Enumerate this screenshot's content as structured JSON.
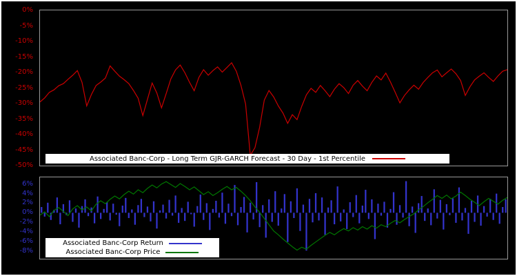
{
  "page": {
    "background": "#000000",
    "frame_border": "#ffffff"
  },
  "chart_data": [
    {
      "type": "line",
      "title": "",
      "xlabel": "",
      "ylabel": "",
      "ylim": [
        -50,
        0
      ],
      "grid": false,
      "legend_position": "bottom-center-inside",
      "axis_label_color": "#cc0000",
      "yticks": [
        "0%",
        "-5%",
        "-10%",
        "-15%",
        "-20%",
        "-25%",
        "-30%",
        "-35%",
        "-40%",
        "-45%",
        "-50%"
      ],
      "ytick_values": [
        0,
        -5,
        -10,
        -15,
        -20,
        -25,
        -30,
        -35,
        -40,
        -45,
        -50
      ],
      "legend": [
        {
          "label": "Associated Banc-Corp - Long Term GJR-GARCH Forecast - 30 Day - 1st Percentile",
          "color": "#cc0000",
          "type": "line"
        }
      ],
      "series": [
        {
          "name": "Associated Banc-Corp - Long Term GJR-GARCH Forecast - 30 Day - 1st Percentile",
          "type": "line",
          "color": "#cc0000",
          "values": [
            -29.5,
            -28.2,
            -26.4,
            -25.6,
            -24.3,
            -23.6,
            -22.2,
            -20.9,
            -19.4,
            -23.2,
            -30.8,
            -27.1,
            -24.2,
            -23.1,
            -21.8,
            -17.9,
            -19.6,
            -21.2,
            -22.3,
            -23.6,
            -25.8,
            -28.3,
            -33.9,
            -28.7,
            -23.4,
            -26.6,
            -31.4,
            -26.8,
            -22.1,
            -19.2,
            -17.6,
            -20.1,
            -23.2,
            -25.9,
            -21.6,
            -19.1,
            -20.9,
            -19.4,
            -18.2,
            -19.9,
            -18.4,
            -16.9,
            -19.6,
            -24.1,
            -30.2,
            -46.7,
            -44.2,
            -37.6,
            -28.9,
            -25.8,
            -27.9,
            -30.8,
            -33.1,
            -36.4,
            -33.6,
            -35.2,
            -30.9,
            -27.2,
            -25.1,
            -26.4,
            -24.2,
            -25.9,
            -27.8,
            -25.4,
            -23.6,
            -24.9,
            -26.8,
            -24.1,
            -22.6,
            -24.4,
            -25.9,
            -23.2,
            -21.1,
            -22.4,
            -20.2,
            -23.1,
            -26.4,
            -29.8,
            -27.4,
            -25.6,
            -24.1,
            -25.4,
            -23.2,
            -21.6,
            -20.1,
            -19.2,
            -21.4,
            -20.1,
            -18.9,
            -20.4,
            -22.6,
            -27.4,
            -24.6,
            -22.4,
            -21.2,
            -20.1,
            -21.6,
            -22.9,
            -21.1,
            -19.6,
            -19.1
          ]
        }
      ]
    },
    {
      "type": "bar",
      "title": "",
      "xlabel": "",
      "ylabel": "",
      "ylim": [
        -9.6,
        7.4
      ],
      "grid": false,
      "legend_position": "bottom-left-inside",
      "axis_label_color": "#3333cc",
      "yticks": [
        "6%",
        "4%",
        "2%",
        "0%",
        "-2%",
        "-4%",
        "-6%",
        "-8%"
      ],
      "ytick_values": [
        6,
        4,
        2,
        0,
        -2,
        -4,
        -6,
        -8
      ],
      "legend": [
        {
          "label": "Associated Banc-Corp Return",
          "color": "#3333cc",
          "type": "bar"
        },
        {
          "label": "Associated Banc-Corp Price",
          "color": "#007700",
          "type": "line"
        }
      ],
      "series": [
        {
          "name": "Associated Banc-Corp Return",
          "type": "bar",
          "color": "#3333cc",
          "values": [
            1.2,
            -0.8,
            2.1,
            -1.5,
            0.6,
            3.2,
            -2.4,
            1.8,
            -0.5,
            2.6,
            -1.9,
            0.9,
            -3.1,
            1.4,
            2.8,
            -0.7,
            1.1,
            -2.2,
            3.4,
            -1.3,
            0.8,
            2.2,
            -1.6,
            1.9,
            -0.4,
            -2.8,
            1.5,
            3.1,
            -1.1,
            0.7,
            -2.5,
            1.6,
            2.9,
            -0.9,
            1.3,
            -1.8,
            2.4,
            -3.3,
            0.5,
            1.7,
            -1.2,
            2.7,
            -0.6,
            3.6,
            -2.1,
            1.0,
            -1.7,
            2.3,
            -0.3,
            -2.9,
            1.4,
            3.8,
            -1.5,
            2.0,
            -3.6,
            0.8,
            2.5,
            -1.0,
            4.2,
            -2.3,
            1.9,
            -0.7,
            5.8,
            -2.6,
            1.2,
            3.3,
            -4.1,
            2.1,
            -1.4,
            6.4,
            -3.0,
            1.6,
            -5.2,
            2.8,
            -1.9,
            4.5,
            -2.7,
            0.9,
            3.9,
            -6.1,
            2.4,
            -1.1,
            5.1,
            -3.8,
            1.7,
            -7.9,
            2.9,
            -2.0,
            4.1,
            -1.6,
            3.2,
            -4.6,
            1.1,
            2.6,
            -2.4,
            5.5,
            -1.8,
            0.7,
            -3.4,
            2.2,
            -0.9,
            3.7,
            -2.2,
            1.5,
            4.8,
            -1.3,
            2.8,
            -5.5,
            1.9,
            -0.6,
            2.3,
            -3.1,
            0.8,
            4.3,
            -2.5,
            1.6,
            -1.0,
            6.6,
            -2.8,
            1.3,
            -4.2,
            2.0,
            3.5,
            -1.7,
            0.9,
            -2.6,
            4.9,
            -1.2,
            2.7,
            -3.5,
            1.8,
            -0.5,
            3.0,
            -2.1,
            5.3,
            -1.6,
            1.0,
            -4.4,
            2.5,
            -1.9,
            3.6,
            -2.7,
            1.4,
            -0.8,
            2.9,
            -1.5,
            4.0,
            -2.3,
            1.2,
            2.8
          ]
        },
        {
          "name": "Associated Banc-Corp Price",
          "type": "line",
          "color": "#007700",
          "values": [
            -0.5,
            0.2,
            -0.8,
            0.5,
            1.1,
            0.3,
            -0.6,
            0.8,
            1.5,
            0.6,
            1.2,
            0.4,
            1.8,
            2.5,
            1.9,
            2.8,
            3.5,
            2.9,
            3.8,
            4.5,
            3.9,
            4.8,
            4.2,
            5.1,
            5.8,
            5.2,
            6.0,
            6.5,
            5.9,
            5.3,
            6.1,
            5.5,
            4.8,
            5.4,
            4.6,
            3.8,
            4.4,
            3.6,
            4.2,
            4.9,
            5.5,
            4.8,
            5.3,
            4.5,
            3.6,
            2.5,
            1.2,
            0.1,
            -1.2,
            -2.5,
            -3.8,
            -4.6,
            -5.5,
            -6.3,
            -7.1,
            -7.8,
            -7.2,
            -7.6,
            -6.8,
            -6.1,
            -5.4,
            -4.7,
            -4.1,
            -4.6,
            -3.9,
            -3.3,
            -3.8,
            -3.1,
            -3.6,
            -2.9,
            -3.4,
            -2.7,
            -3.2,
            -2.5,
            -2.9,
            -2.2,
            -1.6,
            -2.1,
            -1.4,
            -0.8,
            -0.2,
            0.6,
            1.3,
            2.1,
            2.8,
            3.6,
            3.0,
            3.7,
            2.9,
            3.5,
            4.3,
            3.6,
            2.8,
            2.2,
            1.5,
            2.3,
            3.0,
            2.4,
            1.8,
            2.6,
            3.2
          ]
        }
      ]
    }
  ]
}
